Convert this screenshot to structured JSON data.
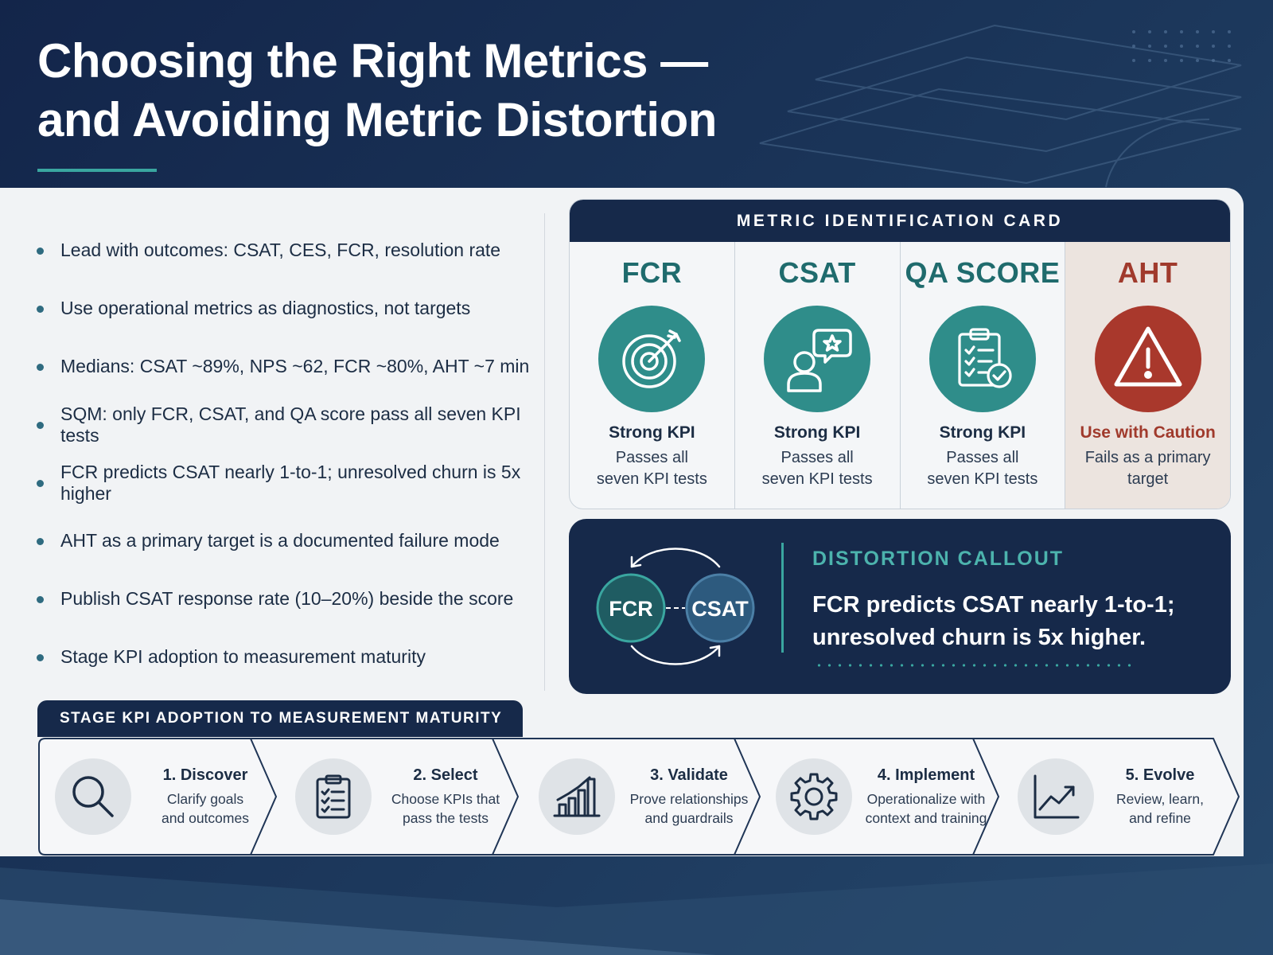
{
  "title": {
    "line1": "Choosing the Right Metrics —",
    "line2": "and Avoiding Metric Distortion"
  },
  "bullets": [
    "Lead with outcomes: CSAT, CES, FCR, resolution rate",
    "Use operational metrics as diagnostics, not targets",
    "Medians: CSAT ~89%, NPS ~62, FCR ~80%, AHT ~7 min",
    "SQM: only FCR, CSAT, and QA score pass all seven KPI tests",
    "FCR predicts CSAT nearly 1-to-1; unresolved churn is 5x higher",
    "AHT as a primary target is a documented failure mode",
    "Publish CSAT response rate (10–20%) beside the score",
    "Stage KPI adoption to measurement maturity"
  ],
  "metric_card": {
    "heading": "METRIC IDENTIFICATION CARD",
    "metrics": [
      {
        "name": "FCR",
        "icon": "target-icon",
        "status": "Strong KPI",
        "desc1": "Passes all",
        "desc2": "seven KPI tests"
      },
      {
        "name": "CSAT",
        "icon": "customer-star-icon",
        "status": "Strong KPI",
        "desc1": "Passes all",
        "desc2": "seven KPI tests"
      },
      {
        "name": "QA SCORE",
        "icon": "clipboard-check-icon",
        "status": "Strong KPI",
        "desc1": "Passes all",
        "desc2": "seven KPI tests"
      },
      {
        "name": "AHT",
        "icon": "warning-icon",
        "status": "Use with Caution",
        "desc1": "Fails as a primary",
        "desc2": "target"
      }
    ],
    "colors": {
      "strong": "#2f8d8a",
      "caution": "#a9382c"
    }
  },
  "callout": {
    "label": "DISTORTION CALLOUT",
    "node_left": "FCR",
    "node_right": "CSAT",
    "line1": "FCR predicts CSAT nearly 1-to-1;",
    "line2": "unresolved churn is 5x higher."
  },
  "stages": {
    "heading": "STAGE KPI ADOPTION TO MEASUREMENT MATURITY",
    "steps": [
      {
        "title": "1. Discover",
        "desc1": "Clarify goals",
        "desc2": "and outcomes",
        "icon": "magnifier-icon"
      },
      {
        "title": "2. Select",
        "desc1": "Choose KPIs that",
        "desc2": "pass the tests",
        "icon": "checklist-icon"
      },
      {
        "title": "3. Validate",
        "desc1": "Prove relationships",
        "desc2": "and guardrails",
        "icon": "bar-chart-icon"
      },
      {
        "title": "4. Implement",
        "desc1": "Operationalize with",
        "desc2": "context and training",
        "icon": "gear-icon"
      },
      {
        "title": "5. Evolve",
        "desc1": "Review, learn,",
        "desc2": "and refine",
        "icon": "trend-up-icon"
      }
    ]
  }
}
